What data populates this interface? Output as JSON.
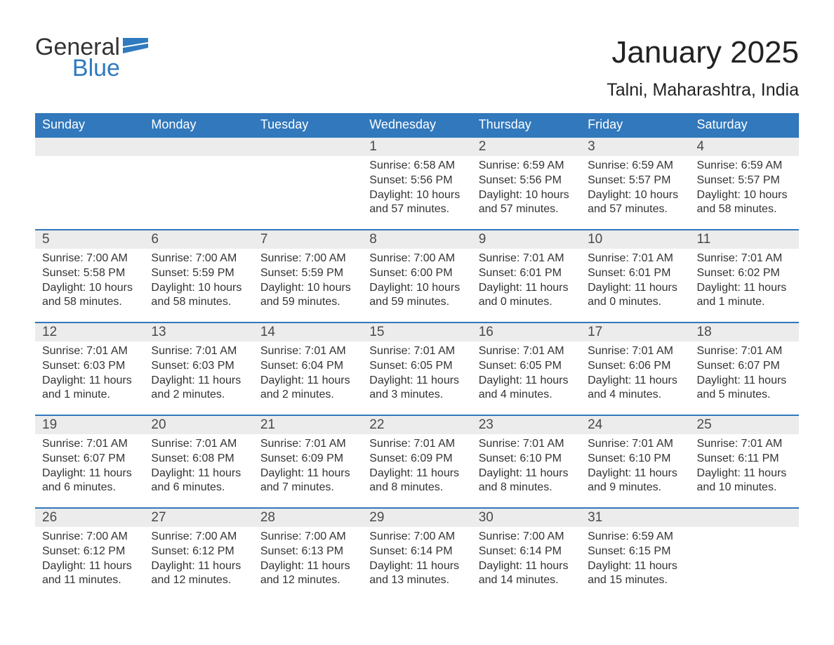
{
  "logo": {
    "word1": "General",
    "word2": "Blue"
  },
  "title": "January 2025",
  "location": "Talni, Maharashtra, India",
  "colors": {
    "header_bg": "#3178bc",
    "header_text": "#ffffff",
    "daynum_bg": "#ececec",
    "daynum_text": "#4a4a4a",
    "body_text": "#333333",
    "week_border": "#3178bc",
    "logo_blue": "#2f7ac0",
    "logo_dark": "#333333",
    "page_bg": "#ffffff"
  },
  "fonts": {
    "title_size": 44,
    "location_size": 25,
    "header_size": 18,
    "daynum_size": 19,
    "body_size": 16
  },
  "calendar": {
    "type": "table",
    "columns": [
      "Sunday",
      "Monday",
      "Tuesday",
      "Wednesday",
      "Thursday",
      "Friday",
      "Saturday"
    ],
    "weeks": [
      [
        null,
        null,
        null,
        {
          "n": "1",
          "sunrise": "Sunrise: 6:58 AM",
          "sunset": "Sunset: 5:56 PM",
          "day1": "Daylight: 10 hours",
          "day2": "and 57 minutes."
        },
        {
          "n": "2",
          "sunrise": "Sunrise: 6:59 AM",
          "sunset": "Sunset: 5:56 PM",
          "day1": "Daylight: 10 hours",
          "day2": "and 57 minutes."
        },
        {
          "n": "3",
          "sunrise": "Sunrise: 6:59 AM",
          "sunset": "Sunset: 5:57 PM",
          "day1": "Daylight: 10 hours",
          "day2": "and 57 minutes."
        },
        {
          "n": "4",
          "sunrise": "Sunrise: 6:59 AM",
          "sunset": "Sunset: 5:57 PM",
          "day1": "Daylight: 10 hours",
          "day2": "and 58 minutes."
        }
      ],
      [
        {
          "n": "5",
          "sunrise": "Sunrise: 7:00 AM",
          "sunset": "Sunset: 5:58 PM",
          "day1": "Daylight: 10 hours",
          "day2": "and 58 minutes."
        },
        {
          "n": "6",
          "sunrise": "Sunrise: 7:00 AM",
          "sunset": "Sunset: 5:59 PM",
          "day1": "Daylight: 10 hours",
          "day2": "and 58 minutes."
        },
        {
          "n": "7",
          "sunrise": "Sunrise: 7:00 AM",
          "sunset": "Sunset: 5:59 PM",
          "day1": "Daylight: 10 hours",
          "day2": "and 59 minutes."
        },
        {
          "n": "8",
          "sunrise": "Sunrise: 7:00 AM",
          "sunset": "Sunset: 6:00 PM",
          "day1": "Daylight: 10 hours",
          "day2": "and 59 minutes."
        },
        {
          "n": "9",
          "sunrise": "Sunrise: 7:01 AM",
          "sunset": "Sunset: 6:01 PM",
          "day1": "Daylight: 11 hours",
          "day2": "and 0 minutes."
        },
        {
          "n": "10",
          "sunrise": "Sunrise: 7:01 AM",
          "sunset": "Sunset: 6:01 PM",
          "day1": "Daylight: 11 hours",
          "day2": "and 0 minutes."
        },
        {
          "n": "11",
          "sunrise": "Sunrise: 7:01 AM",
          "sunset": "Sunset: 6:02 PM",
          "day1": "Daylight: 11 hours",
          "day2": "and 1 minute."
        }
      ],
      [
        {
          "n": "12",
          "sunrise": "Sunrise: 7:01 AM",
          "sunset": "Sunset: 6:03 PM",
          "day1": "Daylight: 11 hours",
          "day2": "and 1 minute."
        },
        {
          "n": "13",
          "sunrise": "Sunrise: 7:01 AM",
          "sunset": "Sunset: 6:03 PM",
          "day1": "Daylight: 11 hours",
          "day2": "and 2 minutes."
        },
        {
          "n": "14",
          "sunrise": "Sunrise: 7:01 AM",
          "sunset": "Sunset: 6:04 PM",
          "day1": "Daylight: 11 hours",
          "day2": "and 2 minutes."
        },
        {
          "n": "15",
          "sunrise": "Sunrise: 7:01 AM",
          "sunset": "Sunset: 6:05 PM",
          "day1": "Daylight: 11 hours",
          "day2": "and 3 minutes."
        },
        {
          "n": "16",
          "sunrise": "Sunrise: 7:01 AM",
          "sunset": "Sunset: 6:05 PM",
          "day1": "Daylight: 11 hours",
          "day2": "and 4 minutes."
        },
        {
          "n": "17",
          "sunrise": "Sunrise: 7:01 AM",
          "sunset": "Sunset: 6:06 PM",
          "day1": "Daylight: 11 hours",
          "day2": "and 4 minutes."
        },
        {
          "n": "18",
          "sunrise": "Sunrise: 7:01 AM",
          "sunset": "Sunset: 6:07 PM",
          "day1": "Daylight: 11 hours",
          "day2": "and 5 minutes."
        }
      ],
      [
        {
          "n": "19",
          "sunrise": "Sunrise: 7:01 AM",
          "sunset": "Sunset: 6:07 PM",
          "day1": "Daylight: 11 hours",
          "day2": "and 6 minutes."
        },
        {
          "n": "20",
          "sunrise": "Sunrise: 7:01 AM",
          "sunset": "Sunset: 6:08 PM",
          "day1": "Daylight: 11 hours",
          "day2": "and 6 minutes."
        },
        {
          "n": "21",
          "sunrise": "Sunrise: 7:01 AM",
          "sunset": "Sunset: 6:09 PM",
          "day1": "Daylight: 11 hours",
          "day2": "and 7 minutes."
        },
        {
          "n": "22",
          "sunrise": "Sunrise: 7:01 AM",
          "sunset": "Sunset: 6:09 PM",
          "day1": "Daylight: 11 hours",
          "day2": "and 8 minutes."
        },
        {
          "n": "23",
          "sunrise": "Sunrise: 7:01 AM",
          "sunset": "Sunset: 6:10 PM",
          "day1": "Daylight: 11 hours",
          "day2": "and 8 minutes."
        },
        {
          "n": "24",
          "sunrise": "Sunrise: 7:01 AM",
          "sunset": "Sunset: 6:10 PM",
          "day1": "Daylight: 11 hours",
          "day2": "and 9 minutes."
        },
        {
          "n": "25",
          "sunrise": "Sunrise: 7:01 AM",
          "sunset": "Sunset: 6:11 PM",
          "day1": "Daylight: 11 hours",
          "day2": "and 10 minutes."
        }
      ],
      [
        {
          "n": "26",
          "sunrise": "Sunrise: 7:00 AM",
          "sunset": "Sunset: 6:12 PM",
          "day1": "Daylight: 11 hours",
          "day2": "and 11 minutes."
        },
        {
          "n": "27",
          "sunrise": "Sunrise: 7:00 AM",
          "sunset": "Sunset: 6:12 PM",
          "day1": "Daylight: 11 hours",
          "day2": "and 12 minutes."
        },
        {
          "n": "28",
          "sunrise": "Sunrise: 7:00 AM",
          "sunset": "Sunset: 6:13 PM",
          "day1": "Daylight: 11 hours",
          "day2": "and 12 minutes."
        },
        {
          "n": "29",
          "sunrise": "Sunrise: 7:00 AM",
          "sunset": "Sunset: 6:14 PM",
          "day1": "Daylight: 11 hours",
          "day2": "and 13 minutes."
        },
        {
          "n": "30",
          "sunrise": "Sunrise: 7:00 AM",
          "sunset": "Sunset: 6:14 PM",
          "day1": "Daylight: 11 hours",
          "day2": "and 14 minutes."
        },
        {
          "n": "31",
          "sunrise": "Sunrise: 6:59 AM",
          "sunset": "Sunset: 6:15 PM",
          "day1": "Daylight: 11 hours",
          "day2": "and 15 minutes."
        },
        null
      ]
    ]
  }
}
